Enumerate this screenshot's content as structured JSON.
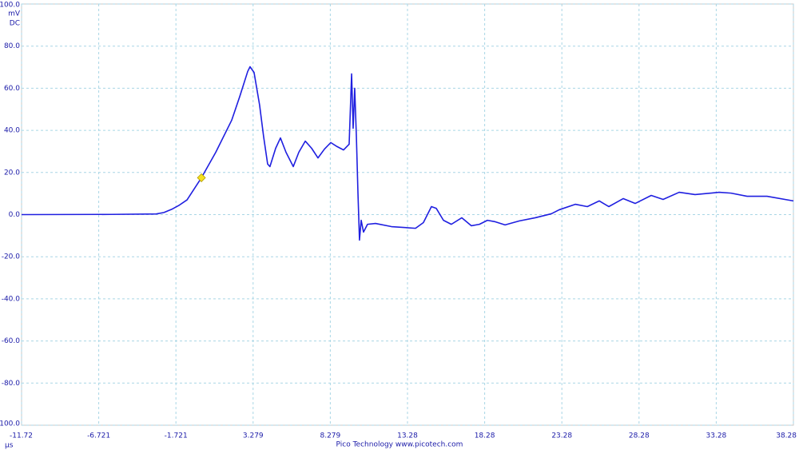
{
  "chart_data": {
    "type": "line",
    "y_unit": "mV",
    "coupling": "DC",
    "x_unit": "µs",
    "footer": "Pico Technology  www.picotech.com",
    "color": "#1f1fe0",
    "grid": true,
    "x": [
      -11.72,
      -6,
      -3,
      -2.5,
      -2,
      -1.5,
      -1,
      -0.07,
      0.86,
      1.89,
      2.41,
      2.93,
      3.08,
      3.34,
      3.7,
      3.96,
      4.22,
      4.37,
      4.74,
      5.05,
      5.41,
      5.88,
      6.24,
      6.66,
      7.07,
      7.48,
      7.9,
      8.31,
      8.72,
      9.14,
      9.5,
      9.66,
      9.76,
      9.86,
      9.97,
      10.07,
      10.17,
      10.28,
      10.43,
      10.69,
      11.21,
      12.24,
      13.8,
      14.31,
      14.83,
      15.14,
      15.61,
      16.12,
      16.8,
      17.42,
      17.94,
      18.46,
      18.97,
      19.6,
      20.53,
      21.56,
      22.6,
      23.11,
      24.15,
      24.93,
      25.7,
      26.32,
      27.26,
      28.03,
      29.07,
      29.84,
      30.88,
      31.91,
      33.47,
      34.24,
      35.28,
      36.57,
      38.28
    ],
    "values": [
      0,
      0.1,
      0.3,
      1,
      2.5,
      4.5,
      7,
      17.5,
      29.6,
      44.8,
      56,
      68,
      70.2,
      67.5,
      52,
      37,
      24,
      22.8,
      31.5,
      36.4,
      29.6,
      22.8,
      29.6,
      34.9,
      31.5,
      26.9,
      31.1,
      34.2,
      32.3,
      30.7,
      33.4,
      66.8,
      41,
      60,
      37,
      10.6,
      -12.1,
      -2.7,
      -8.3,
      -4.6,
      -4.2,
      -5.7,
      -6.5,
      -3.8,
      3.8,
      3,
      -2.7,
      -4.6,
      -1.5,
      -5.3,
      -4.6,
      -2.7,
      -3.4,
      -4.9,
      -3,
      -1.5,
      0.4,
      2.3,
      4.9,
      3.8,
      6.5,
      3.8,
      7.6,
      5.3,
      9.1,
      7.2,
      10.6,
      9.5,
      10.6,
      10.2,
      8.7,
      8.7,
      6.5
    ],
    "trigger": {
      "x": -0.07,
      "y": 17.5,
      "color": "#f5e020"
    },
    "xlim": [
      -11.72,
      38.28
    ],
    "xticks": [
      -11.72,
      -6.721,
      -1.721,
      3.279,
      8.279,
      13.28,
      18.28,
      23.28,
      28.28,
      33.28,
      38.28
    ],
    "ylim": [
      -100,
      100
    ],
    "yticks": [
      {
        "value": -100,
        "label": "-100.0"
      },
      {
        "value": -80,
        "label": "-80.0"
      },
      {
        "value": -60,
        "label": "-60.0"
      },
      {
        "value": -40,
        "label": "-40.0"
      },
      {
        "value": -20,
        "label": "-20.0"
      },
      {
        "value": 0,
        "label": "0.0"
      },
      {
        "value": 20,
        "label": "20.0"
      },
      {
        "value": 40,
        "label": "40.0"
      },
      {
        "value": 60,
        "label": "60.0"
      },
      {
        "value": 80,
        "label": "80.0"
      },
      {
        "value": 100,
        "label": "100.0"
      }
    ]
  }
}
